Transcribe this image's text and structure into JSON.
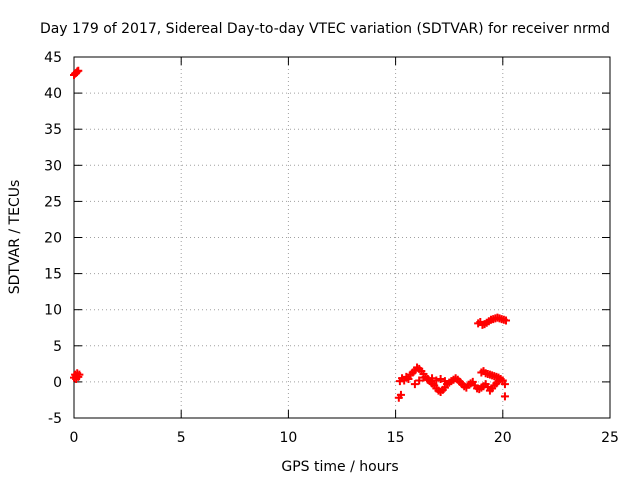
{
  "chart_data": {
    "type": "scatter",
    "title": "Day 179 of 2017, Sidereal Day-to-day VTEC variation (SDTVAR) for receiver nrmd",
    "xlabel": "GPS time / hours",
    "ylabel": "SDTVAR / TECUs",
    "xlim": [
      0,
      25
    ],
    "ylim": [
      -5,
      45
    ],
    "x_ticks": [
      0,
      5,
      10,
      15,
      20,
      25
    ],
    "y_ticks": [
      -5,
      0,
      5,
      10,
      15,
      20,
      25,
      30,
      35,
      40,
      45
    ],
    "grid": true,
    "marker": "plus",
    "series_color": "#ff0000",
    "points": [
      [
        0.0,
        42.5
      ],
      [
        0.05,
        42.7
      ],
      [
        0.1,
        42.8
      ],
      [
        0.15,
        43.0
      ],
      [
        0.2,
        43.1
      ],
      [
        0.0,
        0.6
      ],
      [
        0.05,
        1.0
      ],
      [
        0.1,
        0.8
      ],
      [
        0.15,
        1.2
      ],
      [
        0.2,
        0.7
      ],
      [
        0.25,
        1.0
      ],
      [
        0.1,
        0.4
      ],
      [
        15.15,
        -2.2
      ],
      [
        15.25,
        -1.8
      ],
      [
        15.2,
        0.1
      ],
      [
        15.3,
        0.5
      ],
      [
        15.4,
        0.2
      ],
      [
        15.5,
        0.7
      ],
      [
        15.6,
        0.4
      ],
      [
        15.7,
        1.0
      ],
      [
        15.8,
        1.3
      ],
      [
        15.9,
        1.6
      ],
      [
        16.0,
        2.0
      ],
      [
        16.1,
        1.8
      ],
      [
        16.2,
        1.5
      ],
      [
        16.3,
        1.1
      ],
      [
        16.4,
        0.7
      ],
      [
        16.5,
        0.4
      ],
      [
        16.6,
        0.1
      ],
      [
        16.7,
        -0.2
      ],
      [
        16.8,
        -0.5
      ],
      [
        16.9,
        -0.9
      ],
      [
        17.0,
        -1.2
      ],
      [
        17.1,
        -1.4
      ],
      [
        17.2,
        -1.1
      ],
      [
        17.3,
        -0.8
      ],
      [
        15.9,
        -0.3
      ],
      [
        16.1,
        0.2
      ],
      [
        16.3,
        0.6
      ],
      [
        16.5,
        0.3
      ],
      [
        16.7,
        0.5
      ],
      [
        16.9,
        0.2
      ],
      [
        17.1,
        0.4
      ],
      [
        17.3,
        0.1
      ],
      [
        17.4,
        -0.3
      ],
      [
        17.5,
        -0.1
      ],
      [
        17.6,
        0.1
      ],
      [
        17.7,
        0.3
      ],
      [
        17.8,
        0.5
      ],
      [
        17.9,
        0.3
      ],
      [
        18.0,
        0.0
      ],
      [
        18.1,
        -0.3
      ],
      [
        18.2,
        -0.6
      ],
      [
        18.3,
        -0.8
      ],
      [
        18.4,
        -0.4
      ],
      [
        18.5,
        -0.2
      ],
      [
        18.6,
        0.0
      ],
      [
        18.7,
        -0.5
      ],
      [
        18.8,
        -0.9
      ],
      [
        18.9,
        -1.0
      ],
      [
        19.0,
        -0.8
      ],
      [
        19.1,
        -0.6
      ],
      [
        19.2,
        -0.3
      ],
      [
        19.3,
        -0.7
      ],
      [
        19.4,
        -1.2
      ],
      [
        19.5,
        -0.9
      ],
      [
        19.6,
        -0.5
      ],
      [
        19.7,
        -0.2
      ],
      [
        19.8,
        0.1
      ],
      [
        19.9,
        0.4
      ],
      [
        20.0,
        0.2
      ],
      [
        20.1,
        -0.3
      ],
      [
        20.1,
        -2.0
      ],
      [
        19.0,
        1.3
      ],
      [
        19.1,
        1.5
      ],
      [
        19.2,
        1.2
      ],
      [
        19.3,
        1.1
      ],
      [
        19.4,
        1.0
      ],
      [
        19.5,
        0.9
      ],
      [
        19.6,
        0.8
      ],
      [
        19.7,
        0.7
      ],
      [
        19.8,
        0.6
      ],
      [
        18.85,
        8.1
      ],
      [
        18.95,
        8.3
      ],
      [
        19.05,
        7.9
      ],
      [
        19.15,
        8.0
      ],
      [
        19.25,
        8.2
      ],
      [
        19.35,
        8.4
      ],
      [
        19.45,
        8.6
      ],
      [
        19.55,
        8.7
      ],
      [
        19.65,
        8.8
      ],
      [
        19.75,
        8.9
      ],
      [
        19.85,
        8.8
      ],
      [
        19.95,
        8.7
      ],
      [
        20.05,
        8.6
      ],
      [
        20.15,
        8.5
      ]
    ]
  }
}
